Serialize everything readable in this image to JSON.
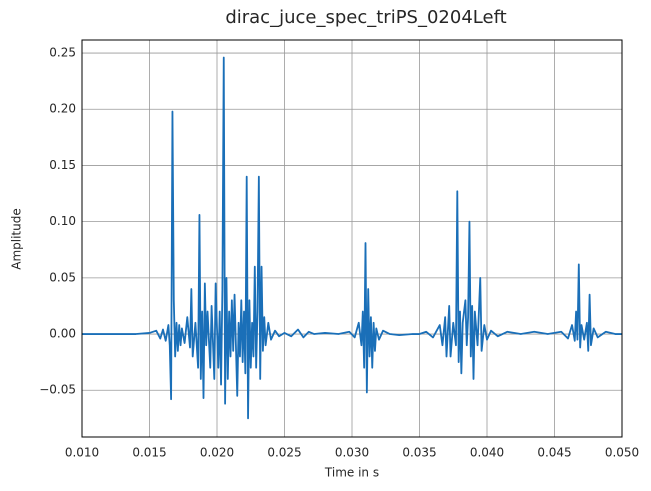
{
  "chart_data": {
    "type": "line",
    "title": "dirac_juce_spec_triPS_0204Left",
    "xlabel": "Time in s",
    "ylabel": "Amplitude",
    "color": "#1a6fb8",
    "grid": true,
    "xlim": [
      0.01,
      0.05
    ],
    "xticks": [
      {
        "value": 0.01,
        "label": "0.010"
      },
      {
        "value": 0.015,
        "label": "0.015"
      },
      {
        "value": 0.02,
        "label": "0.020"
      },
      {
        "value": 0.025,
        "label": "0.025"
      },
      {
        "value": 0.03,
        "label": "0.030"
      },
      {
        "value": 0.035,
        "label": "0.035"
      },
      {
        "value": 0.04,
        "label": "0.040"
      },
      {
        "value": 0.045,
        "label": "0.045"
      },
      {
        "value": 0.05,
        "label": "0.050"
      }
    ],
    "ylim": [
      -0.0916,
      0.2616
    ],
    "yticks": [
      {
        "value": -0.05,
        "label": "−0.05"
      },
      {
        "value": 0,
        "label": "0.00"
      },
      {
        "value": 0.05,
        "label": "0.05"
      },
      {
        "value": 0.1,
        "label": "0.10"
      },
      {
        "value": 0.15,
        "label": "0.15"
      },
      {
        "value": 0.2,
        "label": "0.20"
      },
      {
        "value": 0.25,
        "label": "0.25"
      }
    ],
    "x": [
      0.01,
      0.011,
      0.012,
      0.013,
      0.014,
      0.015,
      0.0155,
      0.0158,
      0.016,
      0.0162,
      0.0164,
      0.0165,
      0.0166,
      0.0167,
      0.0168,
      0.0169,
      0.017,
      0.0171,
      0.0172,
      0.0173,
      0.0174,
      0.0176,
      0.0178,
      0.018,
      0.0181,
      0.0182,
      0.0184,
      0.0186,
      0.0187,
      0.0188,
      0.0189,
      0.019,
      0.0191,
      0.0192,
      0.0193,
      0.0195,
      0.0196,
      0.0198,
      0.0199,
      0.02,
      0.0201,
      0.0202,
      0.0203,
      0.0204,
      0.0205,
      0.0206,
      0.0207,
      0.0208,
      0.0209,
      0.021,
      0.0211,
      0.0212,
      0.0213,
      0.0214,
      0.0215,
      0.0216,
      0.0217,
      0.0218,
      0.0219,
      0.022,
      0.0221,
      0.0222,
      0.0223,
      0.0224,
      0.0225,
      0.0226,
      0.0227,
      0.0228,
      0.0229,
      0.023,
      0.0231,
      0.0232,
      0.0233,
      0.0234,
      0.0235,
      0.0236,
      0.0238,
      0.024,
      0.0243,
      0.0246,
      0.025,
      0.0255,
      0.026,
      0.0264,
      0.0268,
      0.0272,
      0.028,
      0.029,
      0.0298,
      0.0302,
      0.0305,
      0.0307,
      0.0308,
      0.0309,
      0.031,
      0.0311,
      0.0312,
      0.0313,
      0.0314,
      0.0315,
      0.0316,
      0.0317,
      0.0318,
      0.032,
      0.0323,
      0.0328,
      0.0335,
      0.0345,
      0.035,
      0.0355,
      0.036,
      0.0365,
      0.0367,
      0.0369,
      0.037,
      0.0372,
      0.0373,
      0.0375,
      0.0377,
      0.0378,
      0.0379,
      0.038,
      0.0381,
      0.0382,
      0.0384,
      0.0385,
      0.0386,
      0.0387,
      0.0388,
      0.0389,
      0.039,
      0.0391,
      0.0393,
      0.0395,
      0.0396,
      0.0398,
      0.04,
      0.0403,
      0.0408,
      0.0415,
      0.0425,
      0.0435,
      0.0445,
      0.0455,
      0.046,
      0.0463,
      0.0465,
      0.0466,
      0.0467,
      0.0468,
      0.0469,
      0.047,
      0.0472,
      0.0474,
      0.0475,
      0.0476,
      0.0477,
      0.0479,
      0.0482,
      0.0488,
      0.0495,
      0.05
    ],
    "values": [
      0.0,
      0.0,
      0.0,
      0.0,
      0.0,
      0.001,
      0.003,
      -0.004,
      0.004,
      -0.006,
      0.008,
      -0.01,
      -0.058,
      0.198,
      0.03,
      -0.02,
      0.01,
      -0.015,
      0.008,
      -0.01,
      0.005,
      -0.008,
      0.015,
      -0.012,
      0.04,
      -0.02,
      0.01,
      -0.03,
      0.106,
      -0.04,
      0.02,
      -0.057,
      0.045,
      -0.01,
      0.02,
      -0.03,
      0.025,
      -0.04,
      0.045,
      0.005,
      -0.03,
      0.02,
      -0.045,
      0.04,
      0.246,
      -0.062,
      0.05,
      -0.04,
      0.02,
      -0.02,
      0.03,
      -0.015,
      0.035,
      -0.01,
      -0.055,
      0.01,
      -0.02,
      0.03,
      -0.025,
      0.02,
      -0.035,
      0.14,
      -0.075,
      0.03,
      -0.03,
      0.01,
      -0.02,
      0.06,
      -0.03,
      0.02,
      0.14,
      -0.04,
      0.06,
      -0.015,
      0.015,
      -0.01,
      0.01,
      -0.005,
      0.003,
      -0.002,
      0.001,
      -0.002,
      0.004,
      -0.003,
      0.002,
      0.0,
      0.001,
      0.0,
      0.002,
      -0.003,
      0.01,
      -0.01,
      0.02,
      -0.03,
      0.081,
      -0.052,
      0.04,
      -0.02,
      0.015,
      -0.03,
      0.01,
      -0.015,
      0.005,
      -0.005,
      0.003,
      0.0,
      -0.001,
      0.0,
      0.0,
      0.002,
      -0.003,
      0.008,
      -0.01,
      0.015,
      -0.02,
      0.025,
      -0.02,
      0.01,
      -0.01,
      0.127,
      -0.025,
      0.02,
      -0.035,
      0.01,
      0.03,
      -0.01,
      0.015,
      0.1,
      -0.02,
      0.025,
      -0.04,
      0.02,
      -0.01,
      0.05,
      -0.015,
      0.008,
      -0.005,
      0.003,
      -0.002,
      0.002,
      0.0,
      0.002,
      0.0,
      0.002,
      -0.004,
      0.008,
      -0.006,
      0.02,
      -0.005,
      0.062,
      -0.012,
      0.008,
      -0.005,
      0.01,
      -0.015,
      0.035,
      -0.01,
      0.005,
      -0.003,
      0.002,
      0.0,
      0.0
    ]
  }
}
